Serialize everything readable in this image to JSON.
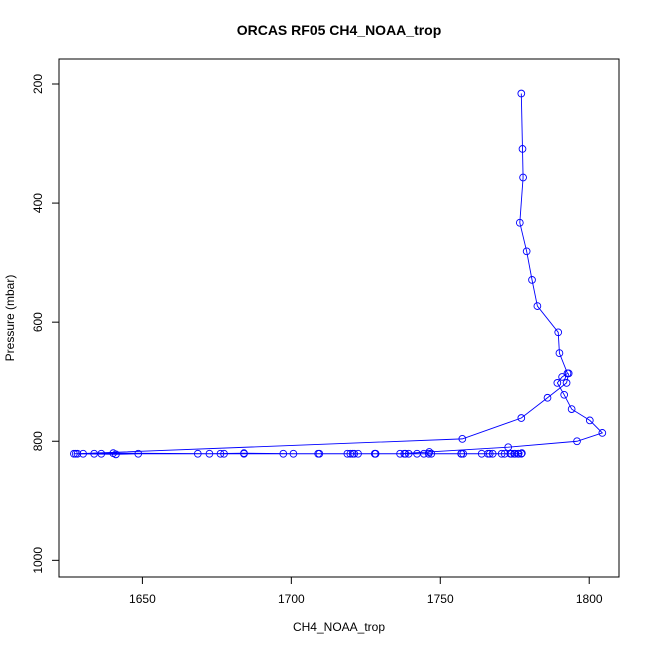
{
  "chart_data": {
    "type": "scatter",
    "title": "ORCAS RF05 CH4_NOAA_trop",
    "xlabel": "CH4_NOAA_trop",
    "ylabel": "Pressure (mbar)",
    "xlim": [
      1622,
      1810
    ],
    "ylim": [
      1028,
      158
    ],
    "y_reversed": true,
    "x_ticks": [
      1650,
      1700,
      1750,
      1800
    ],
    "y_ticks": [
      200,
      400,
      600,
      800,
      1000
    ],
    "grid": false,
    "legend": "none",
    "series": [
      {
        "color": "#0000ff",
        "x": [
          1777.2,
          1777.6,
          1777.8,
          1776.7,
          1779.0,
          1780.8,
          1782.6,
          1789.6,
          1790.0,
          1792.7,
          1790.9,
          1789.3,
          1791.6,
          1794.1,
          1800.2,
          1804.4,
          1795.9,
          1772.8,
          1746.3,
          1736.5,
          1720.6,
          1700.7,
          1684.1,
          1672.5,
          1640.2,
          1630.1,
          1627.6,
          1641.1,
          1648.6,
          1668.6,
          1676.2,
          1697.3,
          1709.0,
          1718.8,
          1722.4,
          1728.1,
          1738.3,
          1744.5,
          1757.0,
          1763.9,
          1766.6,
          1770.6,
          1773.5,
          1775.1,
          1777.2,
          1777.4,
          1776.3,
          1774.8,
          1773.9,
          1767.6,
          1757.7,
          1747.0,
          1742.2,
          1739.4,
          1728.3,
          1719.8,
          1709.4,
          1684.1,
          1636.2,
          1633.8,
          1627.0,
          1776.1,
          1771.6,
          1766.0,
          1757.1,
          1746.1,
          1737.9,
          1728.0,
          1721.1,
          1677.4,
          1628.2,
          1757.4,
          1777.2,
          1786.0,
          1792.4,
          1793.1
        ],
        "y": [
          216,
          309,
          357,
          433,
          481,
          529,
          573,
          617,
          652,
          686,
          692,
          702,
          722,
          746,
          765,
          786,
          800,
          810,
          818,
          821,
          821,
          821,
          820,
          821,
          820,
          821,
          821,
          822,
          821,
          821,
          821,
          821,
          821,
          821,
          821,
          821,
          821,
          821,
          821,
          821,
          821,
          821,
          821,
          821,
          821,
          820,
          821,
          821,
          821,
          821,
          821,
          821,
          821,
          821,
          821,
          821,
          821,
          821,
          821,
          821,
          821,
          821,
          821,
          821,
          821,
          821,
          821,
          821,
          821,
          821,
          821,
          796,
          761,
          727,
          702,
          686
        ]
      }
    ]
  }
}
